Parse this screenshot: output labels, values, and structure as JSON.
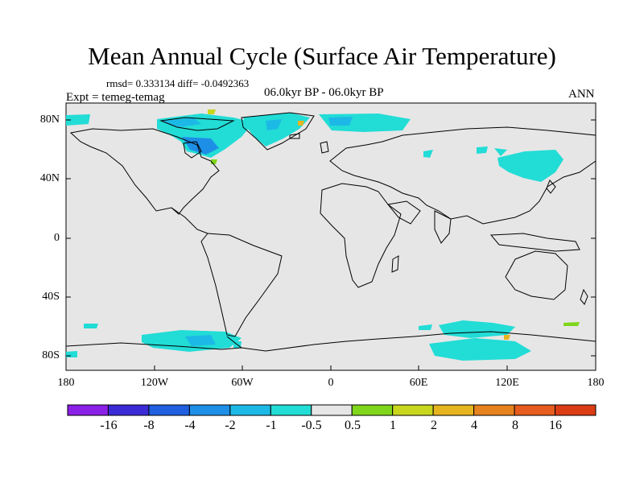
{
  "title": "Mean Annual Cycle (Surface Air Temperature)",
  "stats": "rmsd= 0.333134 diff= -0.0492363",
  "period": "06.0kyr BP - 06.0kyr BP",
  "experiment": "Expt = temeg-temag",
  "season": "ANN",
  "lat_labels": [
    "80N",
    "40N",
    "0",
    "40S",
    "80S"
  ],
  "lon_labels": [
    "180",
    "120W",
    "60W",
    "0",
    "60E",
    "120E",
    "180"
  ],
  "colorbar": {
    "labels": [
      "-16",
      "-8",
      "-4",
      "-2",
      "-1",
      "-0.5",
      "0.5",
      "1",
      "2",
      "4",
      "8",
      "16"
    ],
    "colors": [
      "#8a1fe6",
      "#3a2bd6",
      "#1f5fe0",
      "#1e8fe6",
      "#1cb9e6",
      "#22dcd6",
      "#e6e6e6",
      "#7fd61a",
      "#c8d61e",
      "#e6b41e",
      "#e6821e",
      "#e65c1e",
      "#dc3c14"
    ]
  },
  "map_background": "#e6e6e6"
}
